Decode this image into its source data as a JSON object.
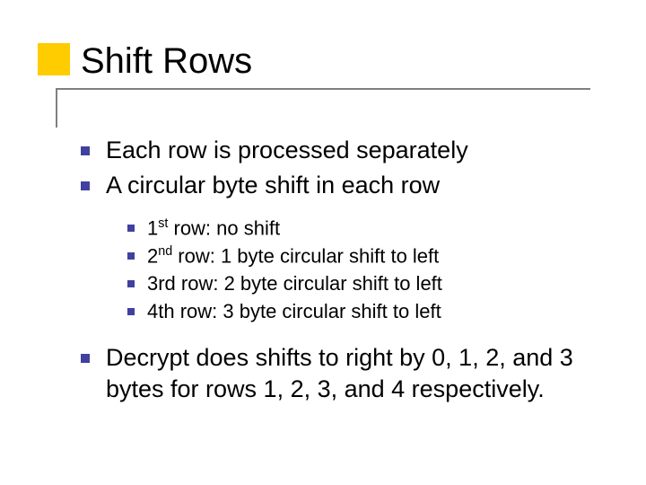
{
  "title": "Shift Rows",
  "colors": {
    "accent": "#ffcc00",
    "line": "#808080",
    "bullet": "#4040a0",
    "text": "#000000",
    "background": "#ffffff"
  },
  "typography": {
    "title_fontsize": 40,
    "level1_fontsize": 27,
    "level2_fontsize": 22,
    "font_family": "Verdana"
  },
  "bullets": {
    "level1": [
      "Each row is processed separately",
      "A circular byte shift in each row"
    ],
    "level2": [
      {
        "prefix": "1",
        "ordinal": "st",
        "rest": " row: no shift"
      },
      {
        "prefix": "2",
        "ordinal": "nd",
        "rest": " row: 1 byte circular shift to left"
      },
      {
        "prefix": "3rd row: 2 byte circular shift to left"
      },
      {
        "prefix": "4th row: 3 byte circular shift to left"
      }
    ],
    "level1_after": [
      "Decrypt does shifts to right by 0, 1, 2, and 3 bytes for rows 1, 2, 3, and 4 respectively."
    ]
  }
}
